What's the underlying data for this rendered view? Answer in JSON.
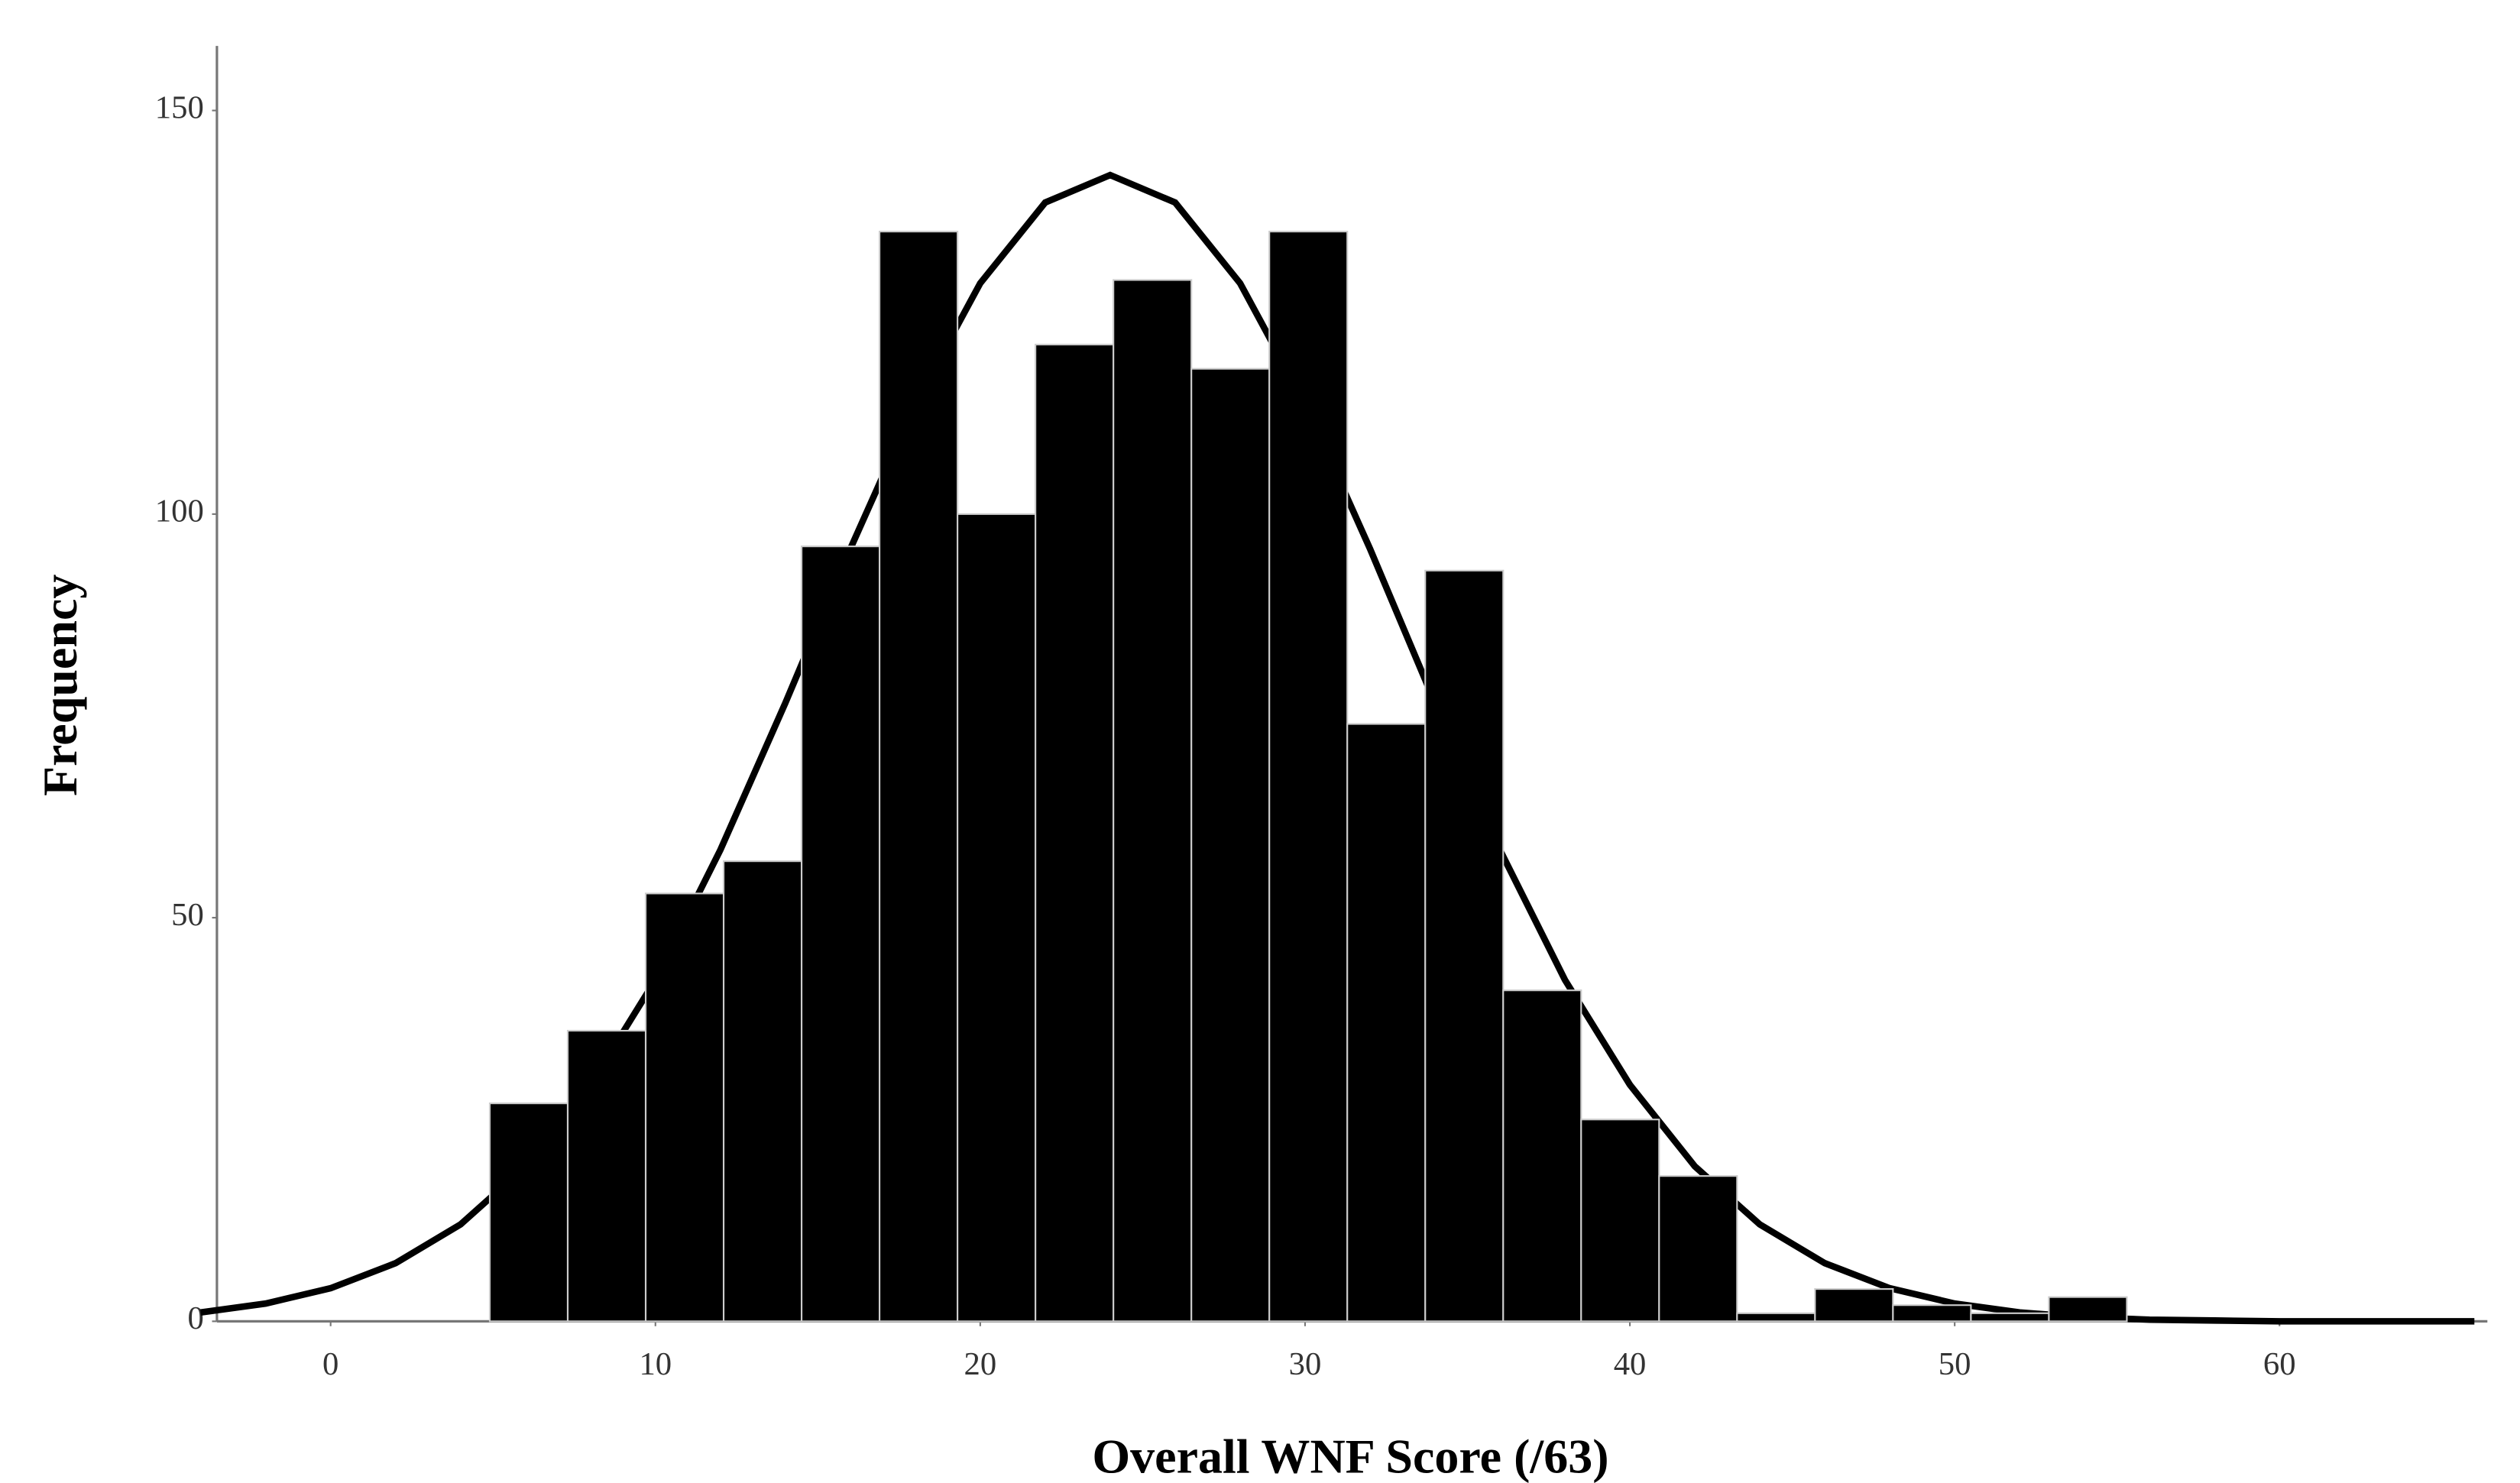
{
  "chart_data": {
    "type": "histogram",
    "x_label": "Overall WNF Score (/63)",
    "y_label": "Frequency",
    "bins": [
      4.9,
      7.3,
      9.7,
      12.1,
      14.5,
      16.9,
      19.3,
      21.7,
      24.1,
      26.5,
      28.9,
      31.3,
      33.7,
      36.1,
      38.5,
      40.9,
      43.3,
      45.7,
      48.1,
      50.5,
      52.9,
      55.3
    ],
    "values": [
      27,
      36,
      53,
      57,
      96,
      135,
      100,
      121,
      129,
      118,
      135,
      74,
      93,
      41,
      25,
      18,
      1,
      4,
      2,
      1,
      3
    ],
    "color": "#000000",
    "curve": {
      "color": "#000000",
      "x": [
        -4,
        -2,
        0,
        2,
        4,
        6,
        8,
        10,
        12,
        14,
        16,
        18,
        20,
        22,
        24,
        26,
        28,
        30,
        32,
        34,
        36,
        38,
        40,
        42,
        44,
        46,
        48,
        50,
        52,
        54,
        56,
        58,
        60,
        62,
        64,
        66
      ],
      "values": [
        1.1,
        2.2,
        4.1,
        7.2,
        12.0,
        19.2,
        29.3,
        42.3,
        58.4,
        76.6,
        95.7,
        113.7,
        128.6,
        138.6,
        142,
        138.6,
        128.6,
        113.7,
        95.7,
        76.6,
        58.4,
        42.3,
        29.3,
        19.2,
        12.0,
        7.2,
        4.1,
        2.2,
        1.1,
        0.5,
        0.2,
        0.1,
        0,
        0,
        0,
        0
      ]
    },
    "xlim": [
      -3.5,
      66.4
    ],
    "ylim": [
      0,
      158
    ],
    "xticks": [
      0,
      10,
      20,
      30,
      40,
      50,
      60
    ],
    "yticks": [
      0,
      50,
      100,
      150
    ]
  }
}
